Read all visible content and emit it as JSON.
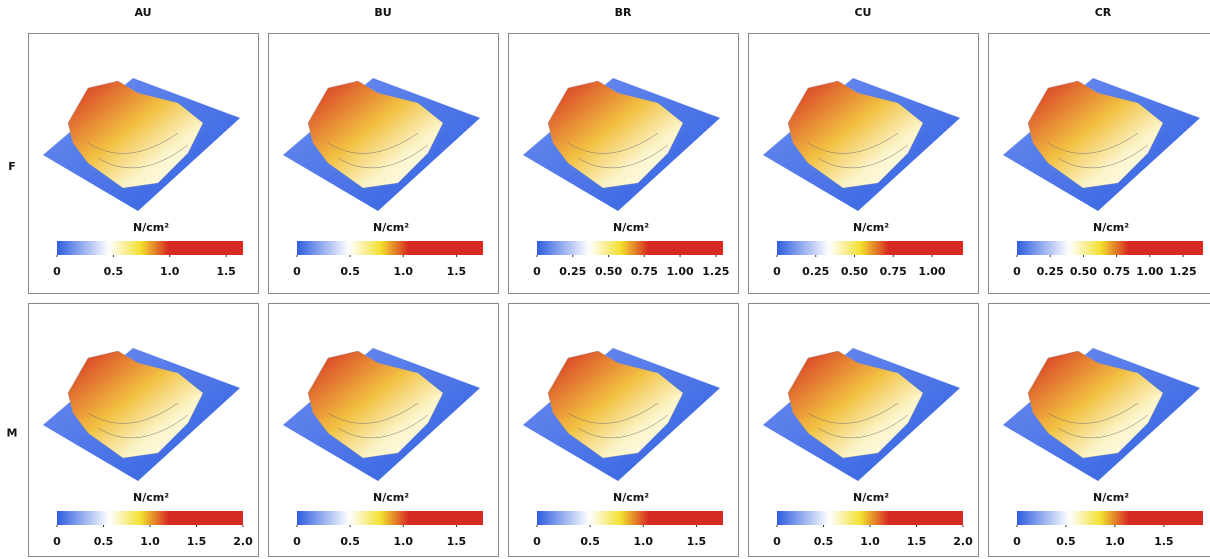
{
  "columns": [
    "AU",
    "BU",
    "BR",
    "CU",
    "CR"
  ],
  "rows": [
    {
      "label": "F",
      "panels": [
        {
          "unit": "N/cm²",
          "colorbar": {
            "lim": [
              0,
              1.65
            ],
            "ticks": [
              0,
              0.5,
              {
                "value": 1,
                "label": "1.0"
              },
              1.5
            ]
          }
        },
        {
          "unit": "N/cm²",
          "colorbar": {
            "lim": [
              0,
              1.75
            ],
            "ticks": [
              0,
              0.5,
              {
                "value": 1,
                "label": "1.0"
              },
              1.5
            ]
          }
        },
        {
          "unit": "N/cm²",
          "colorbar": {
            "lim": [
              0,
              1.3
            ],
            "ticks": [
              0,
              0.25,
              {
                "value": 0.5,
                "label": "0.50"
              },
              0.75,
              {
                "value": 1,
                "label": "1.00"
              },
              1.25
            ]
          }
        },
        {
          "unit": "N/cm²",
          "colorbar": {
            "lim": [
              0,
              1.2
            ],
            "ticks": [
              0,
              0.25,
              {
                "value": 0.5,
                "label": "0.50"
              },
              0.75,
              {
                "value": 1,
                "label": "1.00"
              }
            ]
          }
        },
        {
          "unit": "N/cm²",
          "colorbar": {
            "lim": [
              0,
              1.4
            ],
            "ticks": [
              0,
              0.25,
              {
                "value": 0.5,
                "label": "0.50"
              },
              0.75,
              {
                "value": 1,
                "label": "1.00"
              },
              1.25
            ]
          }
        }
      ]
    },
    {
      "label": "M",
      "panels": [
        {
          "unit": "N/cm²",
          "colorbar": {
            "lim": [
              0,
              2
            ],
            "ticks": [
              0,
              0.5,
              {
                "value": 1,
                "label": "1.0"
              },
              1.5,
              {
                "value": 2,
                "label": "2.0"
              }
            ]
          }
        },
        {
          "unit": "N/cm²",
          "colorbar": {
            "lim": [
              0,
              1.75
            ],
            "ticks": [
              0,
              0.5,
              {
                "value": 1,
                "label": "1.0"
              },
              1.5
            ]
          }
        },
        {
          "unit": "N/cm²",
          "colorbar": {
            "lim": [
              0,
              1.75
            ],
            "ticks": [
              0,
              0.5,
              {
                "value": 1,
                "label": "1.0"
              },
              1.5
            ]
          }
        },
        {
          "unit": "N/cm²",
          "colorbar": {
            "lim": [
              0,
              2
            ],
            "ticks": [
              0,
              0.5,
              {
                "value": 1,
                "label": "1.0"
              },
              1.5,
              {
                "value": 2,
                "label": "2.0"
              }
            ]
          }
        },
        {
          "unit": "N/cm²",
          "colorbar": {
            "lim": [
              0,
              1.9
            ],
            "ticks": [
              0,
              0.5,
              {
                "value": 1,
                "label": "1.0"
              },
              1.5
            ]
          }
        }
      ]
    }
  ]
}
